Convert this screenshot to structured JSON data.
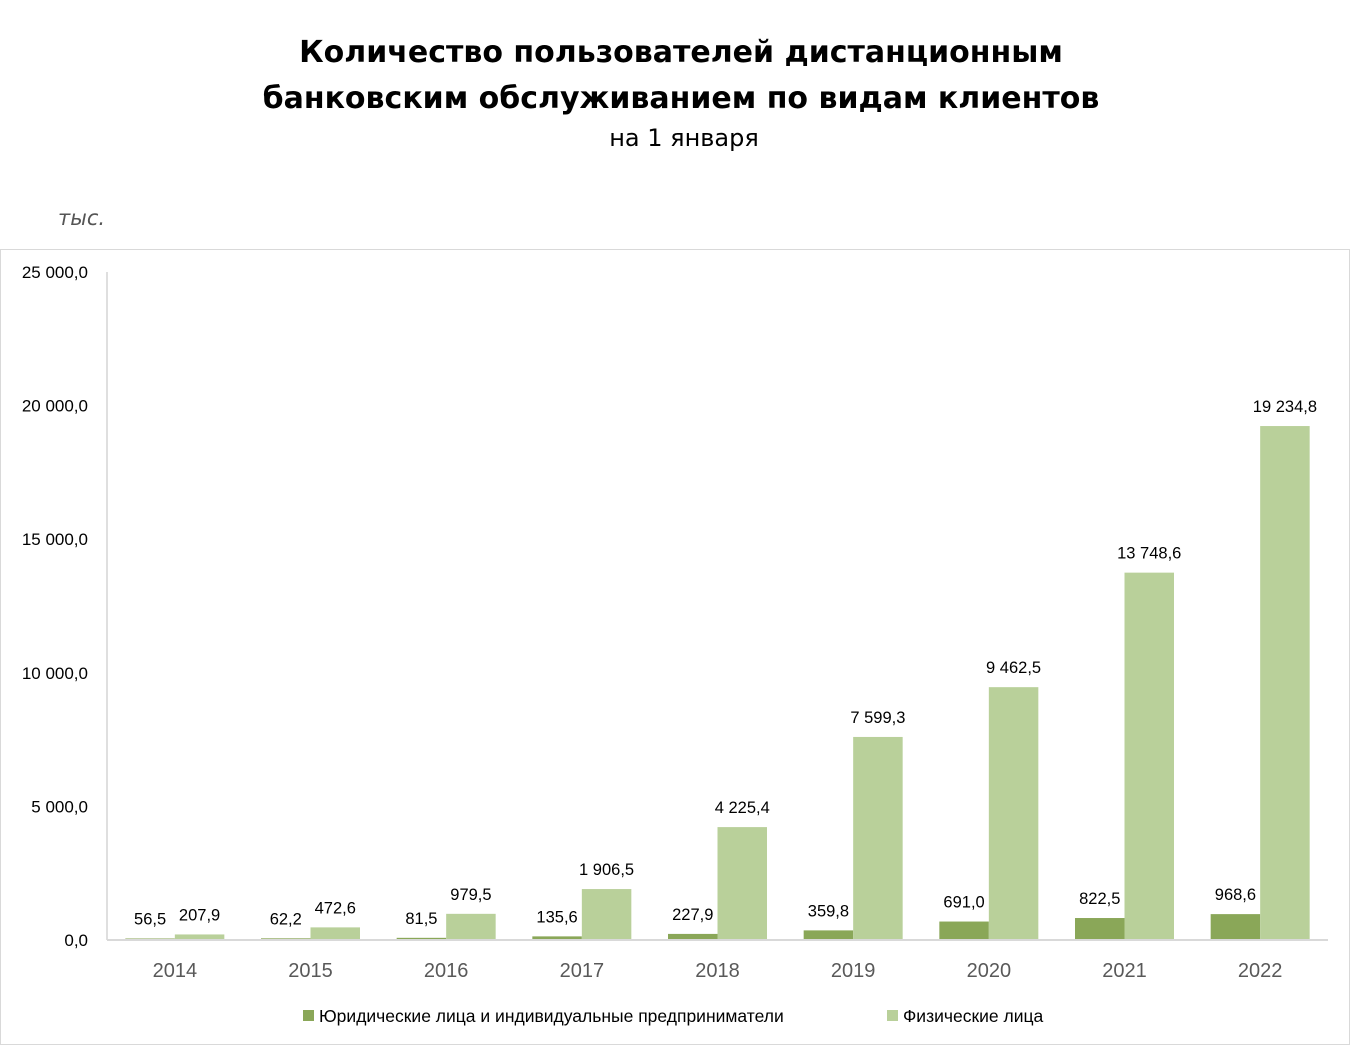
{
  "title_line1": "Количество пользователей дистанционным",
  "title_line2": "банковским обслуживанием по видам клиентов",
  "subtitle": "на 1 января",
  "unit_label": "тыс.",
  "chart_data": {
    "type": "bar",
    "title": "Количество пользователей дистанционным банковским обслуживанием по видам клиентов",
    "subtitle": "на 1 января",
    "ylabel": "тыс.",
    "categories": [
      "2014",
      "2015",
      "2016",
      "2017",
      "2018",
      "2019",
      "2020",
      "2021",
      "2022"
    ],
    "series": [
      {
        "name": "Юридические лица и индивидуальные предприниматели",
        "color": "#8aa758",
        "values": [
          56.5,
          62.2,
          81.5,
          135.6,
          227.9,
          359.8,
          691.0,
          822.5,
          968.6
        ],
        "labels": [
          "56,5",
          "62,2",
          "81,5",
          "135,6",
          "227,9",
          "359,8",
          "691,0",
          "822,5",
          "968,6"
        ]
      },
      {
        "name": "Физические лица",
        "color": "#b9d09a",
        "values": [
          207.9,
          472.6,
          979.5,
          1906.5,
          4225.4,
          7599.3,
          9462.5,
          13748.6,
          19234.8
        ],
        "labels": [
          "207,9",
          "472,6",
          "979,5",
          "1 906,5",
          "4 225,4",
          "7 599,3",
          "9 462,5",
          "13 748,6",
          "19 234,8"
        ]
      }
    ],
    "ylim": [
      0,
      25000
    ],
    "yticks": [
      0,
      5000,
      10000,
      15000,
      20000,
      25000
    ],
    "ytick_labels": [
      "0,0",
      "5 000,0",
      "10 000,0",
      "15 000,0",
      "20 000,0",
      "25 000,0"
    ],
    "grid": false,
    "legend": "bottom"
  }
}
